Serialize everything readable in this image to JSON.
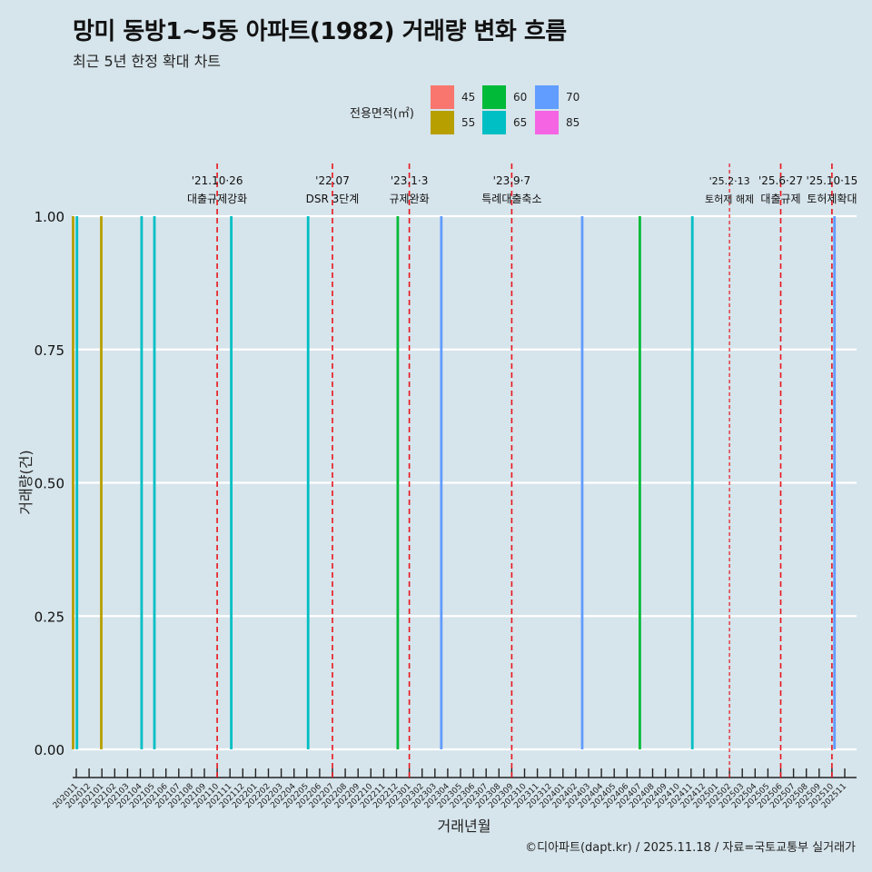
{
  "title": "망미 동방1~5동 아파트(1982) 거래량 변화 흐름",
  "subtitle": "최근 5년 한정 확대 차트",
  "caption": "©디아파트(dapt.kr) / 2025.11.18 / 자료=국토교통부 실거래가",
  "legend": {
    "title": "전용면적(㎡)",
    "items": [
      {
        "label": "45",
        "color": "#F8766D"
      },
      {
        "label": "55",
        "color": "#B79F00"
      },
      {
        "label": "60",
        "color": "#00BA38"
      },
      {
        "label": "65",
        "color": "#00BFC4"
      },
      {
        "label": "70",
        "color": "#619CFF"
      },
      {
        "label": "85",
        "color": "#F564E3"
      }
    ]
  },
  "chart_data": {
    "type": "bar",
    "title": "망미 동방1~5동 아파트(1982) 거래량 변화 흐름",
    "xlabel": "거래년월",
    "ylabel": "거래량(건)",
    "ylim": [
      0,
      1
    ],
    "yticks": [
      "0.00",
      "0.25",
      "0.50",
      "0.75",
      "1.00"
    ],
    "categories": [
      "202011",
      "202012",
      "202101",
      "202102",
      "202103",
      "202104",
      "202105",
      "202106",
      "202107",
      "202108",
      "202109",
      "202110",
      "202111",
      "202112",
      "202201",
      "202202",
      "202203",
      "202204",
      "202205",
      "202206",
      "202207",
      "202208",
      "202209",
      "202210",
      "202211",
      "202212",
      "202301",
      "202302",
      "202303",
      "202304",
      "202305",
      "202306",
      "202307",
      "202308",
      "202309",
      "202310",
      "202311",
      "202312",
      "202401",
      "202402",
      "202403",
      "202404",
      "202405",
      "202406",
      "202407",
      "202408",
      "202409",
      "202410",
      "202411",
      "202412",
      "202501",
      "202502",
      "202503",
      "202504",
      "202505",
      "202506",
      "202507",
      "202508",
      "202509",
      "202510",
      "202511"
    ],
    "bars": [
      {
        "month": "202011",
        "offset": -0.25,
        "area": "55",
        "value": 1
      },
      {
        "month": "202011",
        "offset": 0.05,
        "area": "65",
        "value": 1
      },
      {
        "month": "202101",
        "offset": -0.05,
        "area": "55",
        "value": 1
      },
      {
        "month": "202104",
        "offset": 0.1,
        "area": "65",
        "value": 1
      },
      {
        "month": "202105",
        "offset": 0.1,
        "area": "65",
        "value": 1
      },
      {
        "month": "202111",
        "offset": 0.1,
        "area": "65",
        "value": 1
      },
      {
        "month": "202205",
        "offset": 0.1,
        "area": "65",
        "value": 1
      },
      {
        "month": "202212",
        "offset": 0.1,
        "area": "60",
        "value": 1
      },
      {
        "month": "202303",
        "offset": 0.5,
        "area": "70",
        "value": 1
      },
      {
        "month": "202402",
        "offset": 0.5,
        "area": "70",
        "value": 1
      },
      {
        "month": "202407",
        "offset": 0.0,
        "area": "60",
        "value": 1
      },
      {
        "month": "202411",
        "offset": 0.1,
        "area": "65",
        "value": 1
      },
      {
        "month": "202510",
        "offset": 0.2,
        "area": "70",
        "value": 1
      }
    ],
    "events": [
      {
        "month": "202110",
        "offset": 0.0,
        "date": "'21.10·26",
        "label": "대출규제강화",
        "style": "dashed"
      },
      {
        "month": "202207",
        "offset": 0.0,
        "date": "'22.07",
        "label": "DSR 3단계",
        "style": "dashed"
      },
      {
        "month": "202301",
        "offset": 0.0,
        "date": "'23.1·3",
        "label": "규제완화",
        "style": "dashed"
      },
      {
        "month": "202309",
        "offset": 0.0,
        "date": "'23.9·7",
        "label": "특례대출축소",
        "style": "dashed"
      },
      {
        "month": "202502",
        "offset": 0.0,
        "date": "'25.2·13",
        "label": "토허제 해제",
        "style": "dotted"
      },
      {
        "month": "202506",
        "offset": 0.0,
        "date": "'25.6·27",
        "label": "대출규제",
        "style": "dashed"
      },
      {
        "month": "202510",
        "offset": 0.0,
        "date": "'25.10·15",
        "label": "토허제확대",
        "style": "dashed"
      }
    ]
  }
}
